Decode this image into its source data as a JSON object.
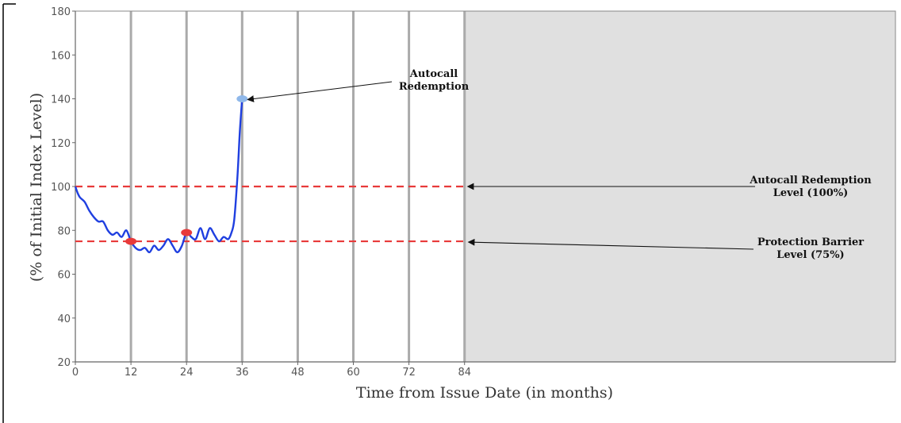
{
  "chart_data": {
    "type": "line",
    "title": "",
    "xlabel": "Time from Issue Date (in months)",
    "ylabel": "(% of Initial Index Level)",
    "xlim": [
      0,
      177
    ],
    "ylim": [
      20,
      180
    ],
    "xticks": [
      "0",
      "12",
      "24",
      "36",
      "48",
      "60",
      "72",
      "84"
    ],
    "yticks": [
      "20",
      "40",
      "60",
      "80",
      "100",
      "120",
      "140",
      "160",
      "180"
    ],
    "xtick_values": [
      0,
      12,
      24,
      36,
      48,
      60,
      72,
      84
    ],
    "ytick_values": [
      20,
      40,
      60,
      80,
      100,
      120,
      140,
      160,
      180
    ],
    "grid": "vertical lines at observation dates",
    "shaded_region": {
      "from": 84,
      "to": 177,
      "color": "#e0e0e0"
    },
    "series": [
      {
        "color": "#1f3fe0",
        "x": [
          0,
          0.5,
          1,
          2,
          3,
          4,
          5,
          6,
          7,
          8,
          9,
          10,
          11,
          12,
          13,
          14,
          15,
          16,
          17,
          18,
          19,
          20,
          21,
          22,
          23,
          24,
          25,
          26,
          27,
          28,
          29,
          30,
          31,
          32,
          33,
          33.7,
          34.3,
          35,
          35.5,
          36
        ],
        "values": [
          100,
          97,
          95,
          93,
          89,
          86,
          84,
          84,
          80,
          78,
          79,
          77,
          80,
          75,
          72,
          71,
          72,
          70,
          73,
          71,
          73,
          76,
          73,
          70,
          73,
          79,
          77,
          76,
          81,
          76,
          81,
          78,
          75,
          77,
          76,
          79,
          85,
          105,
          125,
          140
        ]
      }
    ],
    "reference_lines": [
      {
        "label": "Autocall Redemption Level (100%)",
        "label_lines": [
          "Autocall Redemption",
          "Level (100%)"
        ],
        "y": 100,
        "color": "#e83a3a",
        "style": "dashed"
      },
      {
        "label": "Protection Barrier Level (75%)",
        "label_lines": [
          "Protection Barrier",
          "Level (75%)"
        ],
        "y": 75,
        "color": "#e83a3a",
        "style": "dashed"
      }
    ],
    "markers": [
      {
        "x": 12,
        "y": 75,
        "color": "#e83a3a"
      },
      {
        "x": 24,
        "y": 79,
        "color": "#e83a3a"
      },
      {
        "x": 36,
        "y": 140,
        "color": "#8fb8ea"
      }
    ],
    "annotations": [
      {
        "text": "Autocall Redemption",
        "lines": [
          "Autocall",
          "Redemption"
        ],
        "target_x": 36,
        "target_y": 140
      }
    ]
  }
}
